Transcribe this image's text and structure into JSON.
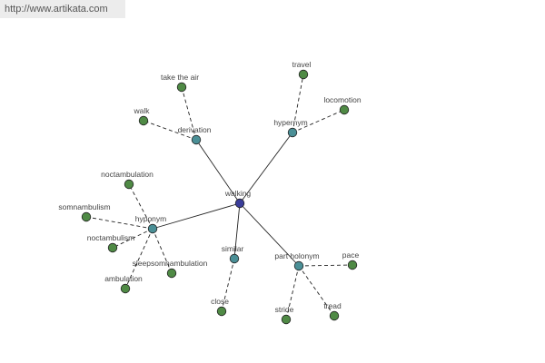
{
  "header": {
    "url": "http://www.artikata.com"
  },
  "nodes": [
    {
      "label": "walking"
    },
    {
      "label": "derivation"
    },
    {
      "label": "hypernym"
    },
    {
      "label": "hyponym"
    },
    {
      "label": "similar"
    },
    {
      "label": "part holonym"
    },
    {
      "label": "take the air"
    },
    {
      "label": "walk"
    },
    {
      "label": "travel"
    },
    {
      "label": "locomotion"
    },
    {
      "label": "noctambulation"
    },
    {
      "label": "somnambulism"
    },
    {
      "label": "noctambulism"
    },
    {
      "label": "ambulation"
    },
    {
      "label": "sleepsomnambulation"
    },
    {
      "label": "close"
    },
    {
      "label": "stride"
    },
    {
      "label": "tread"
    },
    {
      "label": "pace"
    }
  ]
}
